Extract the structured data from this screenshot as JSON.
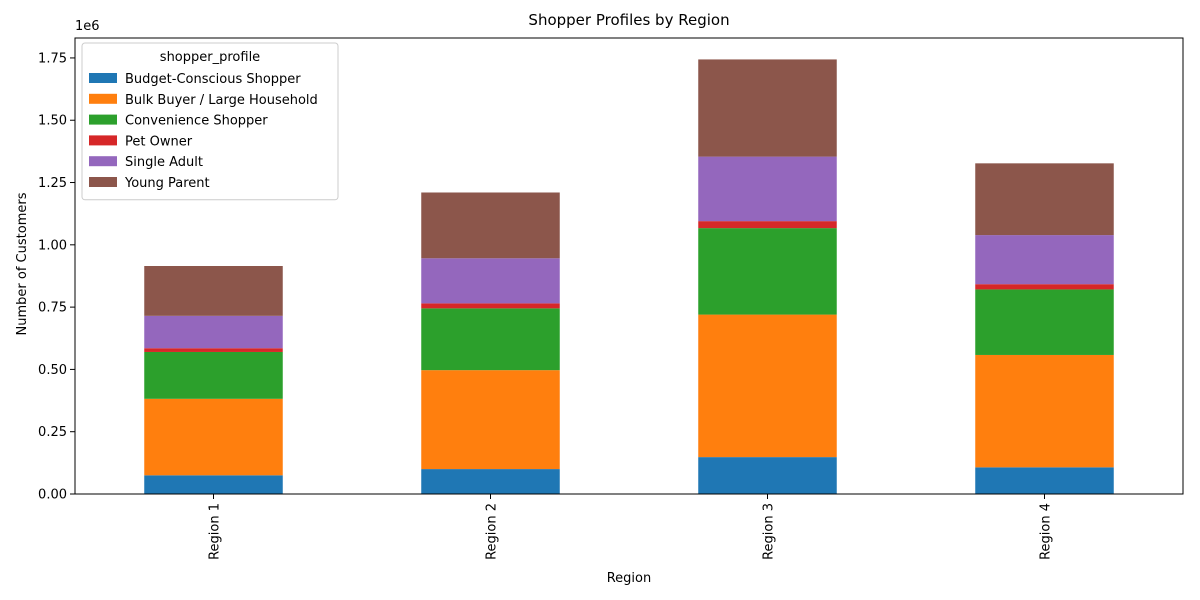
{
  "chart_data": {
    "type": "bar",
    "stacked": true,
    "title": "Shopper Profiles by Region",
    "xlabel": "Region",
    "ylabel": "Number of Customers",
    "y_offset_text": "1e6",
    "categories": [
      "Region 1",
      "Region 2",
      "Region 3",
      "Region 4"
    ],
    "ylim": [
      0,
      1830000
    ],
    "yticks": [
      0,
      250000,
      500000,
      750000,
      1000000,
      1250000,
      1500000,
      1750000
    ],
    "ytick_labels": [
      "0.00",
      "0.25",
      "0.50",
      "0.75",
      "1.00",
      "1.25",
      "1.50",
      "1.75"
    ],
    "grid": false,
    "legend": {
      "title": "shopper_profile",
      "placement": "top-left"
    },
    "series": [
      {
        "name": "Budget-Conscious Shopper",
        "color": "#1f77b4",
        "values": [
          75000,
          100000,
          148000,
          107000
        ]
      },
      {
        "name": "Bulk Buyer / Large Household",
        "color": "#ff7f0e",
        "values": [
          307000,
          397000,
          572000,
          451000
        ]
      },
      {
        "name": "Convenience Shopper",
        "color": "#2ca02c",
        "values": [
          188000,
          248000,
          347000,
          263000
        ]
      },
      {
        "name": "Pet Owner",
        "color": "#d62728",
        "values": [
          15000,
          20000,
          28000,
          21000
        ]
      },
      {
        "name": "Single Adult",
        "color": "#9467bd",
        "values": [
          130000,
          181000,
          259000,
          197000
        ]
      },
      {
        "name": "Young Parent",
        "color": "#8c564b",
        "values": [
          200000,
          264000,
          390000,
          288000
        ]
      }
    ]
  }
}
